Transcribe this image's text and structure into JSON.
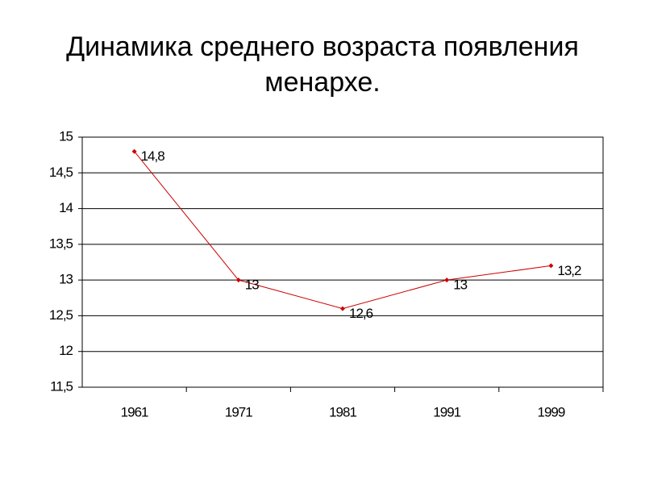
{
  "chart_data": {
    "type": "line",
    "title": "Динамика среднего возраста появления менархе.",
    "categories": [
      "1961",
      "1971",
      "1981",
      "1991",
      "1999"
    ],
    "values": [
      14.8,
      13,
      12.6,
      13,
      13.2
    ],
    "value_labels": [
      "14,8",
      "13",
      "12,6",
      "13",
      "13,2"
    ],
    "color": "#cc0000",
    "ylim": [
      11.5,
      15
    ],
    "yticks": [
      {
        "value": 11.5,
        "label": "11,5"
      },
      12,
      {
        "value": 12.5,
        "label": "12,5"
      },
      13,
      {
        "value": 13.5,
        "label": "13,5"
      },
      14,
      {
        "value": 14.5,
        "label": "14,5"
      },
      15
    ],
    "grid": true
  }
}
